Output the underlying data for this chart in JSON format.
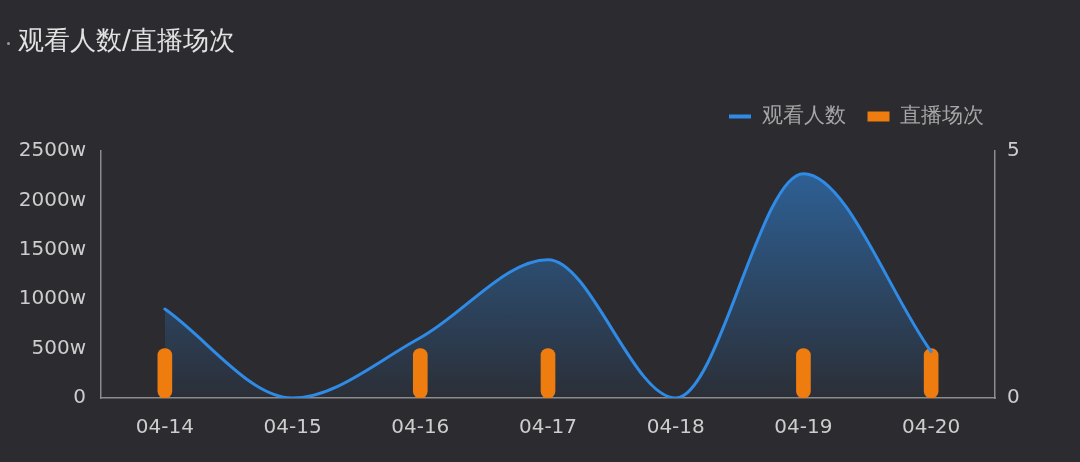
{
  "chart_data": {
    "type": "bar",
    "title": "观看人数/直播场次",
    "categories": [
      "04-14",
      "04-15",
      "04-16",
      "04-17",
      "04-18",
      "04-19",
      "04-20"
    ],
    "series": [
      {
        "name": "观看人数",
        "type": "area",
        "color": "#2f8be6",
        "values": [
          900,
          0,
          610,
          1400,
          0,
          2270,
          470
        ]
      },
      {
        "name": "直播场次",
        "color": "#ef7c0e",
        "axis": "y2",
        "values": [
          1,
          0,
          1,
          1,
          0,
          1,
          1
        ]
      }
    ],
    "ylim": [
      0,
      2500
    ],
    "yticks": [
      0,
      {
        "value": 500,
        "label": "500w"
      },
      {
        "value": 1000,
        "label": "1000w"
      },
      {
        "value": 1500,
        "label": "1500w"
      },
      {
        "value": 2000,
        "label": "2000w"
      },
      {
        "value": 2500,
        "label": "2500w"
      }
    ],
    "y2lim": [
      0,
      5
    ],
    "y2ticks": [
      0,
      5
    ],
    "legend": "top right",
    "grid": false,
    "marker": "none"
  }
}
